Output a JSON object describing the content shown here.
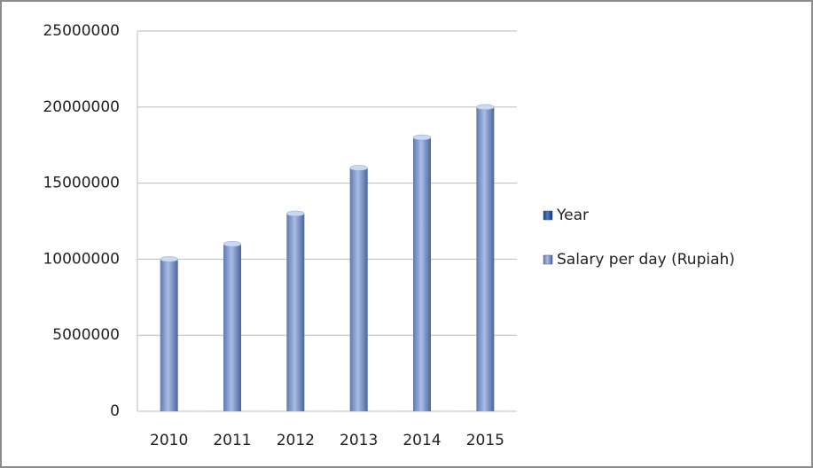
{
  "chart_data": {
    "type": "bar",
    "categories": [
      "2010",
      "2011",
      "2012",
      "2013",
      "2014",
      "2015"
    ],
    "series": [
      {
        "name": "Year",
        "color": "#1f4e9a",
        "values": [
          2010,
          2011,
          2012,
          2013,
          2014,
          2015
        ]
      },
      {
        "name": "Salary per day (Rupiah)",
        "color": "#7f96c8",
        "values": [
          10000000,
          11000000,
          13000000,
          16000000,
          18000000,
          20000000
        ]
      }
    ],
    "ylim": [
      0,
      25000000
    ],
    "yticks": [
      0,
      5000000,
      10000000,
      15000000,
      20000000,
      25000000
    ],
    "grid": true,
    "legend": "right"
  }
}
